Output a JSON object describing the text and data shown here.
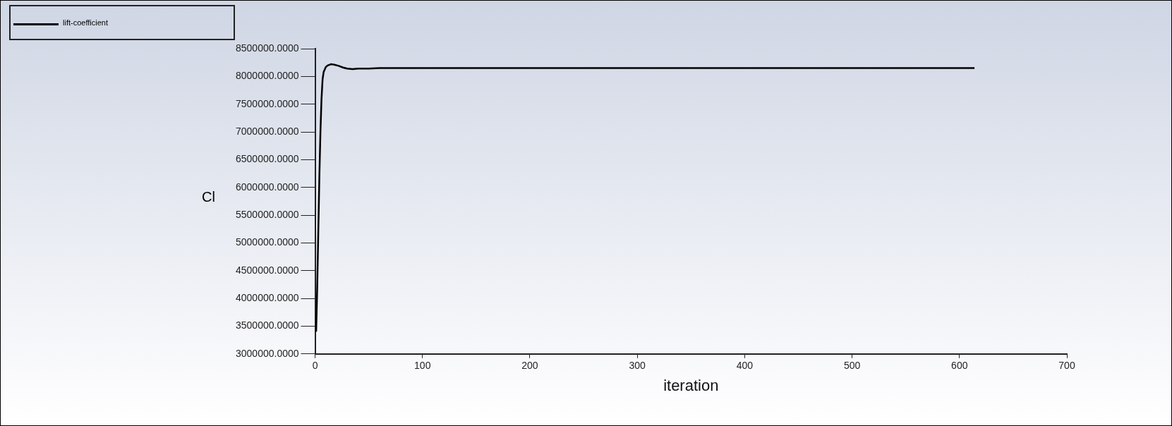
{
  "chart_data": {
    "type": "line",
    "xlabel": "iteration",
    "ylabel": "Cl",
    "legend": "top left",
    "grid": false,
    "marker": "none",
    "line_style": "solid",
    "xlim": [
      0,
      700
    ],
    "xticks": [
      0,
      100,
      200,
      300,
      400,
      500,
      600,
      700
    ],
    "ylim": [
      3000000,
      8500000
    ],
    "yticks": [
      {
        "value": 3000000,
        "label": "3000000.0000"
      },
      {
        "value": 3500000,
        "label": "3500000.0000"
      },
      {
        "value": 4000000,
        "label": "4000000.0000"
      },
      {
        "value": 4500000,
        "label": "4500000.0000"
      },
      {
        "value": 5000000,
        "label": "5000000.0000"
      },
      {
        "value": 5500000,
        "label": "5500000.0000"
      },
      {
        "value": 6000000,
        "label": "6000000.0000"
      },
      {
        "value": 6500000,
        "label": "6500000.0000"
      },
      {
        "value": 7000000,
        "label": "7000000.0000"
      },
      {
        "value": 7500000,
        "label": "7500000.0000"
      },
      {
        "value": 8000000,
        "label": "8000000.0000"
      },
      {
        "value": 8500000,
        "label": "8500000.0000"
      }
    ],
    "series": [
      {
        "name": "lift-coefficient",
        "color": "#000000",
        "x": [
          1,
          2,
          3,
          4,
          5,
          6,
          7,
          8,
          10,
          12,
          15,
          18,
          22,
          26,
          30,
          35,
          40,
          50,
          60,
          80,
          100,
          200,
          300,
          400,
          500,
          614
        ],
        "values": [
          3400000,
          4200000,
          5200000,
          6200000,
          7000000,
          7600000,
          7950000,
          8080000,
          8170000,
          8200000,
          8220000,
          8210000,
          8190000,
          8160000,
          8140000,
          8130000,
          8140000,
          8140000,
          8150000,
          8150000,
          8150000,
          8150000,
          8150000,
          8150000,
          8150000,
          8150000
        ]
      }
    ]
  }
}
